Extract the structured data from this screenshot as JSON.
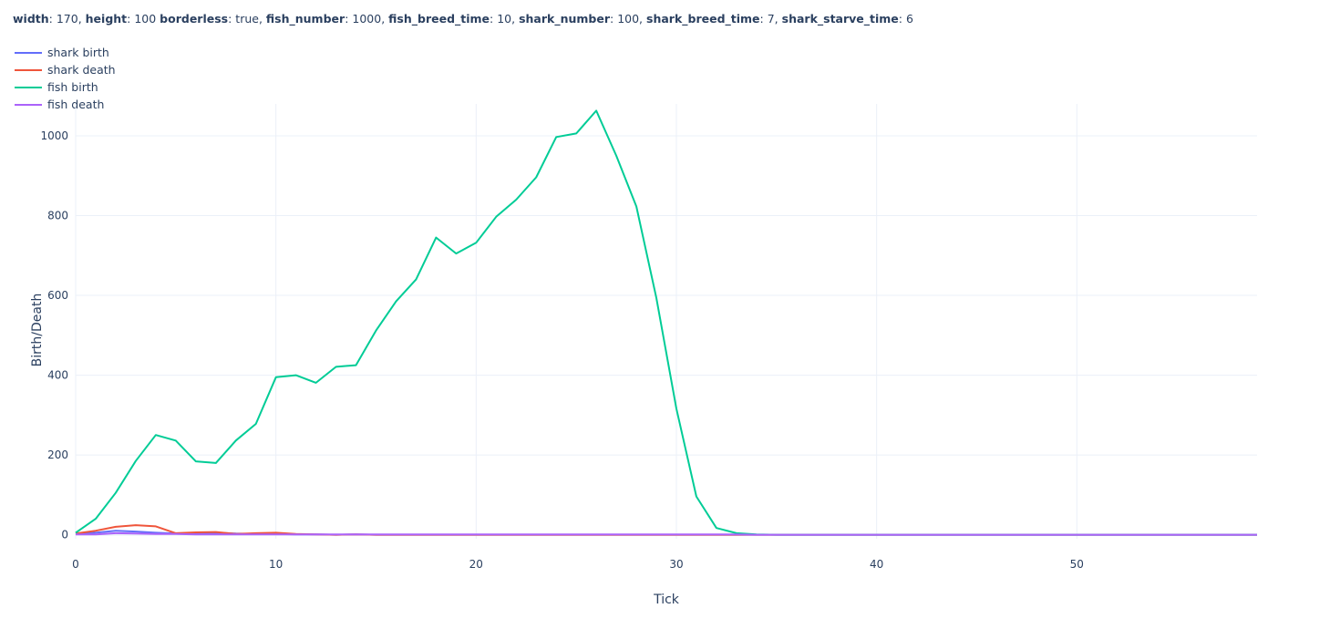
{
  "params": [
    {
      "key": "width",
      "value": "170"
    },
    {
      "key": "height",
      "value": "100"
    },
    {
      "key": "borderless",
      "value": "true"
    },
    {
      "key": "fish_number",
      "value": "1000"
    },
    {
      "key": "fish_breed_time",
      "value": "10"
    },
    {
      "key": "shark_number",
      "value": "100"
    },
    {
      "key": "shark_breed_time",
      "value": "7"
    },
    {
      "key": "shark_starve_time",
      "value": "6"
    }
  ],
  "chart_data": {
    "type": "line",
    "title": "",
    "xlabel": "Tick",
    "ylabel": "Birth/Death",
    "xlim": [
      0,
      59
    ],
    "ylim": [
      -10,
      1080
    ],
    "xticks": [
      0,
      10,
      20,
      30,
      40,
      50
    ],
    "yticks": [
      0,
      200,
      400,
      600,
      800,
      1000
    ],
    "grid": true,
    "legend_position": "top-left",
    "series": [
      {
        "name": "shark birth",
        "color": "#636efa",
        "values": [
          2,
          5,
          10,
          8,
          5,
          3,
          4,
          5,
          3,
          2,
          2,
          1,
          1,
          0,
          1,
          0,
          0,
          0,
          0,
          0,
          0,
          0,
          0,
          0,
          0,
          0,
          0,
          0,
          0,
          0,
          0,
          0,
          0,
          0,
          0,
          0,
          0,
          0,
          0,
          0,
          0,
          0,
          0,
          0,
          0,
          0,
          0,
          0,
          0,
          0,
          0,
          0,
          0,
          0,
          0,
          0,
          0,
          0,
          0,
          0
        ]
      },
      {
        "name": "shark death",
        "color": "#ef553b",
        "values": [
          3,
          10,
          20,
          24,
          21,
          4,
          6,
          7,
          2,
          4,
          5,
          2,
          1,
          0,
          1,
          0,
          0,
          0,
          0,
          0,
          0,
          0,
          0,
          0,
          0,
          0,
          0,
          0,
          0,
          0,
          0,
          0,
          0,
          0,
          0,
          0,
          0,
          0,
          0,
          0,
          0,
          0,
          0,
          0,
          0,
          0,
          0,
          0,
          0,
          0,
          0,
          0,
          0,
          0,
          0,
          0,
          0,
          0,
          0,
          0
        ]
      },
      {
        "name": "fish birth",
        "color": "#00cc96",
        "values": [
          5,
          40,
          105,
          185,
          250,
          236,
          184,
          180,
          236,
          278,
          395,
          400,
          381,
          421,
          425,
          512,
          585,
          640,
          745,
          705,
          732,
          797,
          840,
          896,
          997,
          1006,
          1063,
          950,
          823,
          594,
          316,
          96,
          17,
          4,
          1,
          0,
          0,
          0,
          0,
          0,
          0,
          0,
          0,
          0,
          0,
          0,
          0,
          0,
          0,
          0,
          0,
          0,
          0,
          0,
          0,
          0,
          0,
          0,
          0,
          0
        ]
      },
      {
        "name": "fish death",
        "color": "#ab63fa",
        "values": [
          1,
          1,
          4,
          3,
          2,
          2,
          1,
          1,
          1,
          1,
          1,
          1,
          1,
          1,
          1,
          1,
          1,
          1,
          1,
          1,
          1,
          1,
          1,
          1,
          1,
          1,
          1,
          1,
          1,
          1,
          1,
          1,
          1,
          1,
          0,
          0,
          0,
          0,
          0,
          0,
          0,
          0,
          0,
          0,
          0,
          0,
          0,
          0,
          0,
          0,
          0,
          0,
          0,
          0,
          0,
          0,
          0,
          0,
          0,
          0
        ]
      }
    ]
  }
}
